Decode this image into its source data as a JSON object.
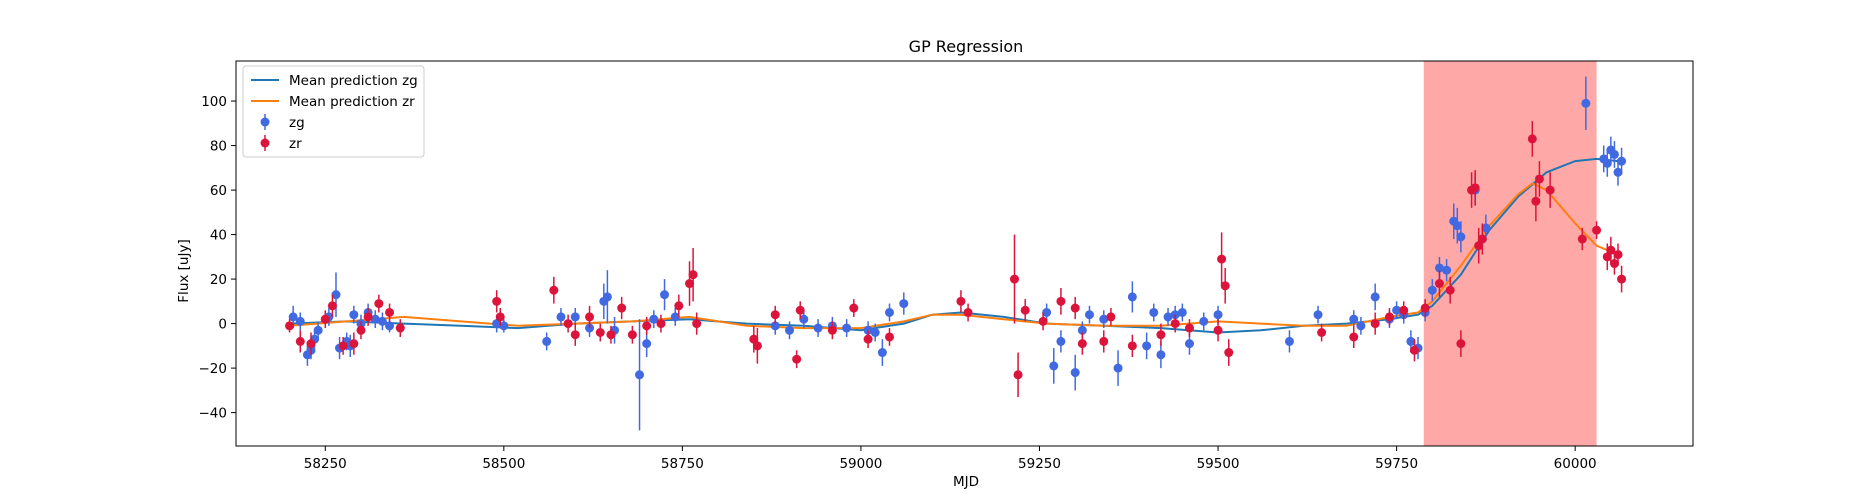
{
  "chart_data": {
    "type": "scatter",
    "title": "GP Regression",
    "xlabel": "MJD",
    "ylabel": "Flux [uJy]",
    "xlim": [
      58125,
      60165
    ],
    "ylim": [
      -55,
      118
    ],
    "xticks": [
      58250,
      58500,
      58750,
      59000,
      59250,
      59500,
      59750,
      60000
    ],
    "yticks": [
      -40,
      -20,
      0,
      20,
      40,
      60,
      80,
      100
    ],
    "grid": false,
    "legend_position": "upper-left",
    "shaded_region": {
      "x_start": 59788,
      "x_end": 60030,
      "color": "#ff9999"
    },
    "colors": {
      "zg_points": "#4169e1",
      "zr_points": "#dc143c",
      "zg_line": "#1f77b4",
      "zr_line": "#ff7f0e"
    },
    "legend": [
      {
        "label": "Mean prediction zg",
        "kind": "line",
        "color": "#1f77b4"
      },
      {
        "label": "Mean prediction zr",
        "kind": "line",
        "color": "#ff7f0e"
      },
      {
        "label": "zg",
        "kind": "marker",
        "color": "#4169e1"
      },
      {
        "label": "zr",
        "kind": "marker",
        "color": "#dc143c"
      }
    ],
    "lines": [
      {
        "name": "Mean prediction zg",
        "color": "#1f77b4",
        "x": [
          58200,
          58280,
          58360,
          58440,
          58520,
          58600,
          58680,
          58760,
          58840,
          58920,
          59000,
          59060,
          59100,
          59140,
          59200,
          59260,
          59340,
          59420,
          59500,
          59560,
          59620,
          59680,
          59740,
          59780,
          59800,
          59840,
          59880,
          59920,
          59960,
          60000,
          60030,
          60060
        ],
        "y": [
          0,
          1,
          0,
          -1,
          -2,
          0,
          1,
          2,
          0,
          -1,
          -3,
          0,
          4,
          5,
          3,
          0,
          -1,
          -2,
          -4,
          -3,
          -1,
          0,
          2,
          4,
          8,
          22,
          42,
          57,
          68,
          73,
          74,
          73
        ]
      },
      {
        "name": "Mean prediction zr",
        "color": "#ff7f0e",
        "x": [
          58200,
          58280,
          58360,
          58440,
          58520,
          58600,
          58680,
          58760,
          58840,
          58920,
          59000,
          59060,
          59100,
          59140,
          59200,
          59260,
          59340,
          59420,
          59500,
          59560,
          59620,
          59680,
          59740,
          59780,
          59800,
          59840,
          59880,
          59920,
          59940,
          59960,
          60000,
          60030,
          60060
        ],
        "y": [
          -1,
          1,
          3,
          1,
          -1,
          0,
          1,
          3,
          -1,
          -2,
          -2,
          1,
          4,
          4,
          2,
          0,
          -1,
          -1,
          1,
          0,
          -1,
          -1,
          3,
          5,
          10,
          26,
          44,
          58,
          63,
          60,
          45,
          35,
          31
        ]
      }
    ],
    "series": [
      {
        "name": "zg",
        "color": "#4169e1",
        "points": [
          [
            58205,
            3,
            5
          ],
          [
            58215,
            1,
            4
          ],
          [
            58225,
            -14,
            5
          ],
          [
            58230,
            -12,
            4
          ],
          [
            58235,
            -7,
            4
          ],
          [
            58240,
            -3,
            4
          ],
          [
            58255,
            3,
            4
          ],
          [
            58265,
            13,
            10
          ],
          [
            58270,
            -11,
            5
          ],
          [
            58280,
            -8,
            4
          ],
          [
            58285,
            -10,
            5
          ],
          [
            58290,
            4,
            4
          ],
          [
            58300,
            0,
            4
          ],
          [
            58310,
            5,
            4
          ],
          [
            58320,
            2,
            4
          ],
          [
            58330,
            1,
            4
          ],
          [
            58340,
            -1,
            3
          ],
          [
            58490,
            0,
            4
          ],
          [
            58500,
            -1,
            3
          ],
          [
            58560,
            -8,
            4
          ],
          [
            58580,
            3,
            4
          ],
          [
            58600,
            3,
            4
          ],
          [
            58620,
            -2,
            4
          ],
          [
            58640,
            10,
            8
          ],
          [
            58645,
            12,
            12
          ],
          [
            58655,
            -3,
            6
          ],
          [
            58690,
            -23,
            25
          ],
          [
            58700,
            -9,
            6
          ],
          [
            58710,
            2,
            4
          ],
          [
            58725,
            13,
            7
          ],
          [
            58740,
            3,
            4
          ],
          [
            58880,
            -1,
            4
          ],
          [
            58900,
            -3,
            4
          ],
          [
            58920,
            2,
            4
          ],
          [
            58940,
            -2,
            4
          ],
          [
            58960,
            -1,
            4
          ],
          [
            58980,
            -2,
            4
          ],
          [
            59010,
            -3,
            4
          ],
          [
            59020,
            -4,
            4
          ],
          [
            59030,
            -13,
            6
          ],
          [
            59040,
            5,
            4
          ],
          [
            59060,
            9,
            5
          ],
          [
            59260,
            5,
            4
          ],
          [
            59270,
            -19,
            8
          ],
          [
            59280,
            -8,
            5
          ],
          [
            59300,
            -22,
            8
          ],
          [
            59310,
            -3,
            4
          ],
          [
            59320,
            4,
            4
          ],
          [
            59340,
            2,
            4
          ],
          [
            59360,
            -20,
            8
          ],
          [
            59380,
            12,
            7
          ],
          [
            59400,
            -10,
            6
          ],
          [
            59410,
            5,
            4
          ],
          [
            59420,
            -14,
            6
          ],
          [
            59430,
            3,
            4
          ],
          [
            59440,
            4,
            4
          ],
          [
            59450,
            5,
            4
          ],
          [
            59460,
            -9,
            5
          ],
          [
            59480,
            1,
            4
          ],
          [
            59500,
            4,
            4
          ],
          [
            59600,
            -8,
            5
          ],
          [
            59640,
            4,
            4
          ],
          [
            59690,
            2,
            4
          ],
          [
            59700,
            -1,
            4
          ],
          [
            59720,
            12,
            6
          ],
          [
            59740,
            2,
            4
          ],
          [
            59750,
            6,
            4
          ],
          [
            59760,
            4,
            4
          ],
          [
            59770,
            -8,
            5
          ],
          [
            59780,
            -11,
            5
          ],
          [
            59790,
            5,
            4
          ],
          [
            59800,
            15,
            5
          ],
          [
            59810,
            25,
            5
          ],
          [
            59820,
            24,
            5
          ],
          [
            59830,
            46,
            8
          ],
          [
            59835,
            44,
            8
          ],
          [
            59840,
            39,
            7
          ],
          [
            59860,
            60,
            7
          ],
          [
            59875,
            43,
            6
          ],
          [
            60015,
            99,
            12
          ],
          [
            60040,
            74,
            6
          ],
          [
            60045,
            72,
            6
          ],
          [
            60050,
            78,
            6
          ],
          [
            60055,
            76,
            6
          ],
          [
            60060,
            68,
            6
          ],
          [
            60065,
            73,
            6
          ]
        ]
      },
      {
        "name": "zr",
        "color": "#dc143c",
        "points": [
          [
            58200,
            -1,
            3
          ],
          [
            58215,
            -8,
            5
          ],
          [
            58230,
            -9,
            5
          ],
          [
            58250,
            2,
            4
          ],
          [
            58260,
            8,
            5
          ],
          [
            58275,
            -10,
            4
          ],
          [
            58290,
            -9,
            5
          ],
          [
            58300,
            -3,
            4
          ],
          [
            58310,
            3,
            4
          ],
          [
            58325,
            9,
            4
          ],
          [
            58340,
            5,
            4
          ],
          [
            58355,
            -2,
            4
          ],
          [
            58490,
            10,
            5
          ],
          [
            58495,
            3,
            4
          ],
          [
            58570,
            15,
            6
          ],
          [
            58590,
            0,
            4
          ],
          [
            58600,
            -5,
            5
          ],
          [
            58620,
            3,
            5
          ],
          [
            58635,
            -4,
            4
          ],
          [
            58650,
            -5,
            4
          ],
          [
            58665,
            7,
            5
          ],
          [
            58680,
            -5,
            4
          ],
          [
            58700,
            -1,
            4
          ],
          [
            58720,
            0,
            4
          ],
          [
            58745,
            8,
            5
          ],
          [
            58760,
            18,
            10
          ],
          [
            58765,
            22,
            12
          ],
          [
            58770,
            0,
            5
          ],
          [
            58850,
            -7,
            6
          ],
          [
            58855,
            -10,
            8
          ],
          [
            58880,
            4,
            4
          ],
          [
            58910,
            -16,
            4
          ],
          [
            58915,
            6,
            4
          ],
          [
            58960,
            -3,
            4
          ],
          [
            58990,
            7,
            4
          ],
          [
            59010,
            -7,
            4
          ],
          [
            59040,
            -6,
            4
          ],
          [
            59140,
            10,
            5
          ],
          [
            59150,
            5,
            4
          ],
          [
            59215,
            20,
            20
          ],
          [
            59220,
            -23,
            10
          ],
          [
            59230,
            6,
            5
          ],
          [
            59255,
            1,
            4
          ],
          [
            59280,
            10,
            6
          ],
          [
            59300,
            7,
            5
          ],
          [
            59310,
            -9,
            5
          ],
          [
            59340,
            -8,
            5
          ],
          [
            59350,
            3,
            4
          ],
          [
            59380,
            -10,
            5
          ],
          [
            59420,
            -5,
            5
          ],
          [
            59440,
            0,
            4
          ],
          [
            59460,
            -2,
            4
          ],
          [
            59500,
            -3,
            5
          ],
          [
            59505,
            29,
            12
          ],
          [
            59510,
            17,
            8
          ],
          [
            59515,
            -13,
            6
          ],
          [
            59645,
            -4,
            4
          ],
          [
            59690,
            -6,
            5
          ],
          [
            59720,
            0,
            5
          ],
          [
            59740,
            3,
            4
          ],
          [
            59760,
            6,
            4
          ],
          [
            59775,
            -12,
            5
          ],
          [
            59790,
            7,
            4
          ],
          [
            59810,
            18,
            6
          ],
          [
            59825,
            15,
            6
          ],
          [
            59840,
            -9,
            6
          ],
          [
            59855,
            60,
            8
          ],
          [
            59860,
            61,
            8
          ],
          [
            59865,
            35,
            8
          ],
          [
            59870,
            38,
            7
          ],
          [
            59940,
            83,
            8
          ],
          [
            59945,
            55,
            9
          ],
          [
            59950,
            65,
            8
          ],
          [
            59965,
            60,
            8
          ],
          [
            60010,
            38,
            5
          ],
          [
            60030,
            42,
            4
          ],
          [
            60045,
            30,
            6
          ],
          [
            60050,
            33,
            6
          ],
          [
            60055,
            27,
            5
          ],
          [
            60060,
            31,
            5
          ],
          [
            60065,
            20,
            6
          ]
        ]
      }
    ]
  }
}
